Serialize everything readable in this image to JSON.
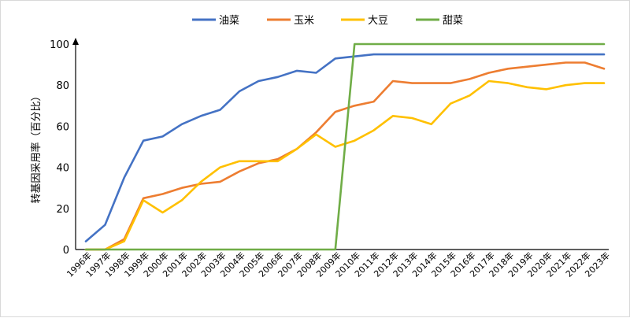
{
  "chart_data": {
    "type": "line",
    "title": "",
    "xlabel": "",
    "ylabel": "转基因采用率（百分比）",
    "ylim": [
      0,
      100
    ],
    "yticks": [
      0,
      20,
      40,
      60,
      80,
      100
    ],
    "grid": false,
    "legend_position": "top-center",
    "categories": [
      "1996年",
      "1997年",
      "1998年",
      "1999年",
      "2000年",
      "2001年",
      "2002年",
      "2003年",
      "2004年",
      "2005年",
      "2006年",
      "2007年",
      "2008年",
      "2009年",
      "2010年",
      "2011年",
      "2012年",
      "2013年",
      "2014年",
      "2015年",
      "2016年",
      "2017年",
      "2018年",
      "2019年",
      "2020年",
      "2021年",
      "2022年",
      "2023年"
    ],
    "series": [
      {
        "name": "油菜",
        "color": "#4472C4",
        "values": [
          4,
          12,
          35,
          53,
          55,
          61,
          65,
          68,
          77,
          82,
          84,
          87,
          86,
          93,
          94,
          95,
          95,
          95,
          95,
          95,
          95,
          95,
          95,
          95,
          95,
          95,
          95,
          95
        ]
      },
      {
        "name": "玉米",
        "color": "#ED7D31",
        "values": [
          0,
          0,
          5,
          25,
          27,
          30,
          32,
          33,
          38,
          42,
          44,
          49,
          57,
          67,
          70,
          72,
          82,
          81,
          81,
          81,
          83,
          86,
          88,
          89,
          90,
          91,
          91,
          88
        ]
      },
      {
        "name": "大豆",
        "color": "#FFC000",
        "values": [
          0,
          0,
          4,
          24,
          18,
          24,
          33,
          40,
          43,
          43,
          43,
          49,
          56,
          50,
          53,
          58,
          65,
          64,
          61,
          71,
          75,
          82,
          81,
          79,
          78,
          80,
          81,
          81
        ]
      },
      {
        "name": "甜菜",
        "color": "#70AD47",
        "values": [
          0,
          0,
          0,
          0,
          0,
          0,
          0,
          0,
          0,
          0,
          0,
          0,
          0,
          0,
          100,
          100,
          100,
          100,
          100,
          100,
          100,
          100,
          100,
          100,
          100,
          100,
          100,
          100
        ]
      }
    ]
  }
}
